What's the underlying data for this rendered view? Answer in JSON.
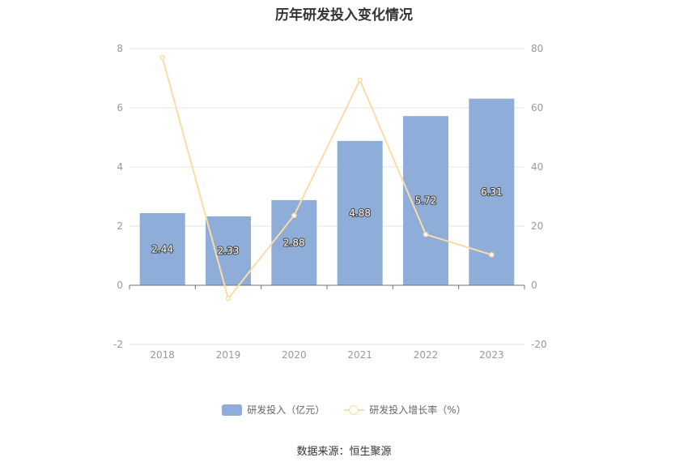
{
  "chart_data": {
    "type": "bar",
    "title": "历年研发投入变化情况",
    "categories": [
      "2018",
      "2019",
      "2020",
      "2021",
      "2022",
      "2023"
    ],
    "series": [
      {
        "name": "研发投入（亿元）",
        "type": "bar",
        "axis": "left",
        "color": "#8eadd9",
        "values": [
          2.44,
          2.33,
          2.88,
          4.88,
          5.72,
          6.31
        ],
        "labels": [
          "2.44",
          "2.33",
          "2.88",
          "4.88",
          "5.72",
          "6.31"
        ]
      },
      {
        "name": "研发投入增长率（%）",
        "type": "line",
        "axis": "right",
        "color": "#fcdca5",
        "values": [
          77,
          -4.5,
          23.6,
          69.4,
          17.2,
          10.3
        ]
      }
    ],
    "y_left": {
      "ylim": [
        -2,
        8
      ],
      "ticks": [
        "-2",
        "0",
        "2",
        "4",
        "6",
        "8"
      ]
    },
    "y_right": {
      "ylim": [
        -20,
        80
      ],
      "ticks": [
        "-20",
        "0",
        "20",
        "40",
        "60",
        "80"
      ]
    },
    "grid": true,
    "legend_position": "bottom"
  },
  "source": "数据来源：恒生聚源"
}
